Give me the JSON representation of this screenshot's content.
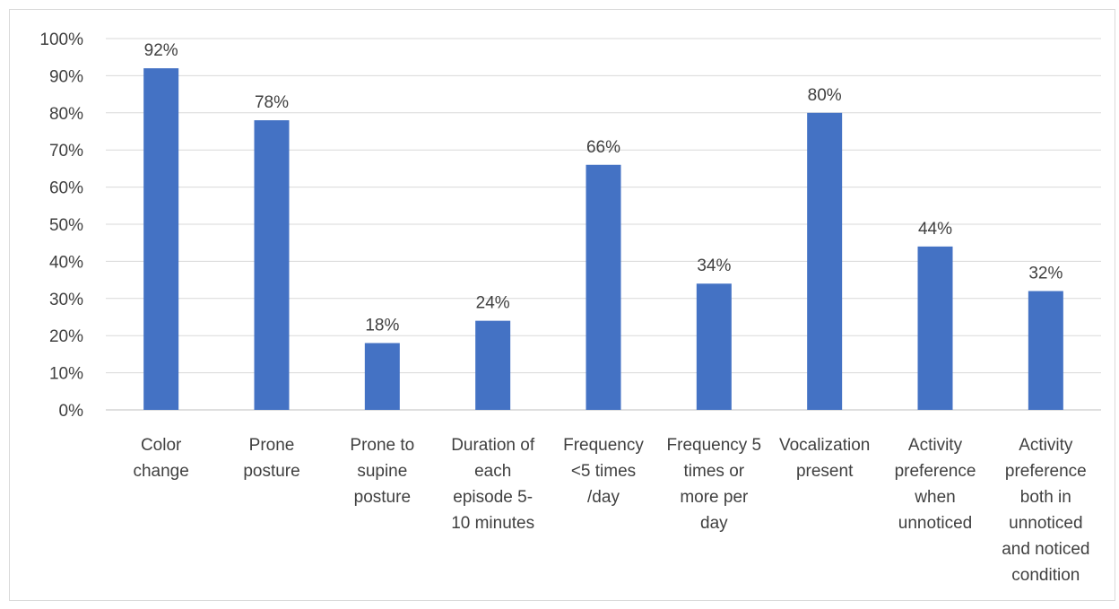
{
  "chart_data": {
    "type": "bar",
    "title": "",
    "xlabel": "",
    "ylabel": "",
    "ylim": [
      0,
      100
    ],
    "yticks": [
      "0%",
      "10%",
      "20%",
      "30%",
      "40%",
      "50%",
      "60%",
      "70%",
      "80%",
      "90%",
      "100%"
    ],
    "grid": true,
    "bar_color": "#4472C4",
    "categories": [
      [
        "Color",
        "change"
      ],
      [
        "Prone",
        "posture"
      ],
      [
        "Prone to",
        "supine",
        "posture"
      ],
      [
        "Duration of",
        "each",
        "episode 5-",
        "10 minutes"
      ],
      [
        "Frequency",
        "<5 times",
        "/day"
      ],
      [
        "Frequency 5",
        "times or",
        "more per",
        "day"
      ],
      [
        "Vocalization",
        "present"
      ],
      [
        "Activity",
        "preference",
        "when",
        "unnoticed"
      ],
      [
        "Activity",
        "preference",
        "both in",
        "unnoticed",
        "and noticed",
        "condition"
      ]
    ],
    "values": [
      92,
      78,
      18,
      24,
      66,
      34,
      80,
      44,
      32
    ],
    "data_labels": [
      "92%",
      "78%",
      "18%",
      "24%",
      "66%",
      "34%",
      "80%",
      "44%",
      "32%"
    ]
  }
}
